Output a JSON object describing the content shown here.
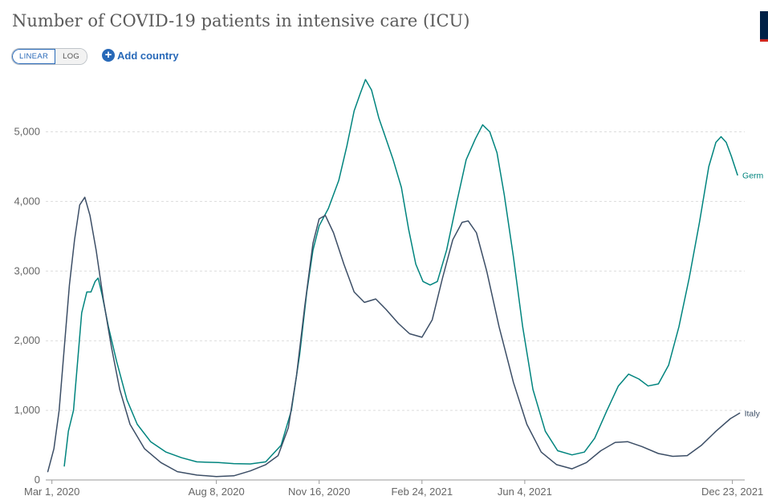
{
  "header": {
    "title": "Number of COVID-19 patients in intensive care (ICU)",
    "scale_linear": "LINEAR",
    "scale_log": "LOG",
    "add_country": "Add country"
  },
  "chart_data": {
    "type": "line",
    "title": "Number of COVID-19 patients in intensive care (ICU)",
    "xlabel": "",
    "ylabel": "",
    "x_range": [
      "2020-02-24",
      "2022-01-04"
    ],
    "ylim": [
      0,
      5800
    ],
    "yticks": [
      0,
      1000,
      2000,
      3000,
      4000,
      5000
    ],
    "ytick_labels": [
      "0",
      "1,000",
      "2,000",
      "3,000",
      "4,000",
      "5,000"
    ],
    "xticks": [
      "2020-03-01",
      "2020-08-08",
      "2020-11-16",
      "2021-02-24",
      "2021-06-04",
      "2021-12-23"
    ],
    "xtick_labels": [
      "Mar 1, 2020",
      "Aug 8, 2020",
      "Nov 16, 2020",
      "Feb 24, 2021",
      "Jun 4, 2021",
      "Dec 23, 2021"
    ],
    "grid": "horizontal-dashed",
    "legend": "line-end labels",
    "series": [
      {
        "name": "Germany",
        "end_label": "Germ",
        "color": "#00847e",
        "points": [
          [
            "2020-03-13",
            200
          ],
          [
            "2020-03-17",
            700
          ],
          [
            "2020-03-22",
            1000
          ],
          [
            "2020-03-26",
            1700
          ],
          [
            "2020-03-30",
            2400
          ],
          [
            "2020-04-04",
            2700
          ],
          [
            "2020-04-08",
            2700
          ],
          [
            "2020-04-12",
            2850
          ],
          [
            "2020-04-15",
            2900
          ],
          [
            "2020-04-19",
            2650
          ],
          [
            "2020-04-25",
            2200
          ],
          [
            "2020-05-03",
            1700
          ],
          [
            "2020-05-13",
            1150
          ],
          [
            "2020-05-23",
            800
          ],
          [
            "2020-06-05",
            550
          ],
          [
            "2020-06-20",
            400
          ],
          [
            "2020-07-05",
            320
          ],
          [
            "2020-07-20",
            260
          ],
          [
            "2020-08-10",
            250
          ],
          [
            "2020-08-25",
            235
          ],
          [
            "2020-09-10",
            230
          ],
          [
            "2020-09-25",
            260
          ],
          [
            "2020-10-10",
            500
          ],
          [
            "2020-10-20",
            1000
          ],
          [
            "2020-10-28",
            1800
          ],
          [
            "2020-11-04",
            2700
          ],
          [
            "2020-11-10",
            3300
          ],
          [
            "2020-11-16",
            3650
          ],
          [
            "2020-11-25",
            3900
          ],
          [
            "2020-12-05",
            4300
          ],
          [
            "2020-12-13",
            4800
          ],
          [
            "2020-12-20",
            5300
          ],
          [
            "2020-12-26",
            5550
          ],
          [
            "2020-12-31",
            5750
          ],
          [
            "2021-01-06",
            5600
          ],
          [
            "2021-01-13",
            5200
          ],
          [
            "2021-01-20",
            4900
          ],
          [
            "2021-01-27",
            4600
          ],
          [
            "2021-02-04",
            4200
          ],
          [
            "2021-02-11",
            3600
          ],
          [
            "2021-02-18",
            3100
          ],
          [
            "2021-02-25",
            2850
          ],
          [
            "2021-03-04",
            2800
          ],
          [
            "2021-03-11",
            2850
          ],
          [
            "2021-03-20",
            3300
          ],
          [
            "2021-03-30",
            4000
          ],
          [
            "2021-04-08",
            4600
          ],
          [
            "2021-04-17",
            4900
          ],
          [
            "2021-04-24",
            5100
          ],
          [
            "2021-05-01",
            5000
          ],
          [
            "2021-05-08",
            4700
          ],
          [
            "2021-05-15",
            4100
          ],
          [
            "2021-05-24",
            3200
          ],
          [
            "2021-06-02",
            2200
          ],
          [
            "2021-06-12",
            1300
          ],
          [
            "2021-06-24",
            700
          ],
          [
            "2021-07-06",
            420
          ],
          [
            "2021-07-20",
            360
          ],
          [
            "2021-08-01",
            400
          ],
          [
            "2021-08-11",
            600
          ],
          [
            "2021-08-23",
            1000
          ],
          [
            "2021-09-03",
            1350
          ],
          [
            "2021-09-13",
            1520
          ],
          [
            "2021-09-23",
            1450
          ],
          [
            "2021-10-02",
            1350
          ],
          [
            "2021-10-12",
            1380
          ],
          [
            "2021-10-22",
            1650
          ],
          [
            "2021-11-01",
            2200
          ],
          [
            "2021-11-11",
            2900
          ],
          [
            "2021-11-21",
            3700
          ],
          [
            "2021-11-30",
            4500
          ],
          [
            "2021-12-07",
            4850
          ],
          [
            "2021-12-12",
            4930
          ],
          [
            "2021-12-17",
            4850
          ],
          [
            "2021-12-22",
            4650
          ],
          [
            "2021-12-28",
            4380
          ]
        ]
      },
      {
        "name": "Italy",
        "end_label": "Italy",
        "color": "#3c4e66",
        "points": [
          [
            "2020-02-26",
            120
          ],
          [
            "2020-03-03",
            450
          ],
          [
            "2020-03-08",
            1000
          ],
          [
            "2020-03-13",
            1900
          ],
          [
            "2020-03-18",
            2800
          ],
          [
            "2020-03-23",
            3450
          ],
          [
            "2020-03-28",
            3950
          ],
          [
            "2020-04-02",
            4060
          ],
          [
            "2020-04-07",
            3800
          ],
          [
            "2020-04-13",
            3300
          ],
          [
            "2020-04-20",
            2600
          ],
          [
            "2020-04-28",
            1900
          ],
          [
            "2020-05-06",
            1300
          ],
          [
            "2020-05-16",
            800
          ],
          [
            "2020-05-30",
            450
          ],
          [
            "2020-06-15",
            250
          ],
          [
            "2020-07-01",
            120
          ],
          [
            "2020-07-20",
            70
          ],
          [
            "2020-08-08",
            50
          ],
          [
            "2020-08-25",
            60
          ],
          [
            "2020-09-10",
            130
          ],
          [
            "2020-09-25",
            220
          ],
          [
            "2020-10-07",
            350
          ],
          [
            "2020-10-17",
            750
          ],
          [
            "2020-10-25",
            1500
          ],
          [
            "2020-11-02",
            2500
          ],
          [
            "2020-11-10",
            3400
          ],
          [
            "2020-11-16",
            3750
          ],
          [
            "2020-11-22",
            3800
          ],
          [
            "2020-11-30",
            3550
          ],
          [
            "2020-12-10",
            3100
          ],
          [
            "2020-12-20",
            2700
          ],
          [
            "2020-12-30",
            2550
          ],
          [
            "2021-01-10",
            2600
          ],
          [
            "2021-01-20",
            2450
          ],
          [
            "2021-02-01",
            2250
          ],
          [
            "2021-02-12",
            2100
          ],
          [
            "2021-02-24",
            2050
          ],
          [
            "2021-03-06",
            2300
          ],
          [
            "2021-03-16",
            2900
          ],
          [
            "2021-03-26",
            3450
          ],
          [
            "2021-04-04",
            3700
          ],
          [
            "2021-04-10",
            3720
          ],
          [
            "2021-04-18",
            3550
          ],
          [
            "2021-04-28",
            3000
          ],
          [
            "2021-05-10",
            2200
          ],
          [
            "2021-05-24",
            1400
          ],
          [
            "2021-06-06",
            800
          ],
          [
            "2021-06-20",
            400
          ],
          [
            "2021-07-05",
            220
          ],
          [
            "2021-07-20",
            160
          ],
          [
            "2021-08-03",
            250
          ],
          [
            "2021-08-17",
            420
          ],
          [
            "2021-08-31",
            540
          ],
          [
            "2021-09-12",
            550
          ],
          [
            "2021-09-26",
            480
          ],
          [
            "2021-10-12",
            380
          ],
          [
            "2021-10-26",
            340
          ],
          [
            "2021-11-09",
            350
          ],
          [
            "2021-11-23",
            500
          ],
          [
            "2021-12-07",
            700
          ],
          [
            "2021-12-21",
            880
          ],
          [
            "2021-12-30",
            960
          ]
        ]
      }
    ]
  }
}
